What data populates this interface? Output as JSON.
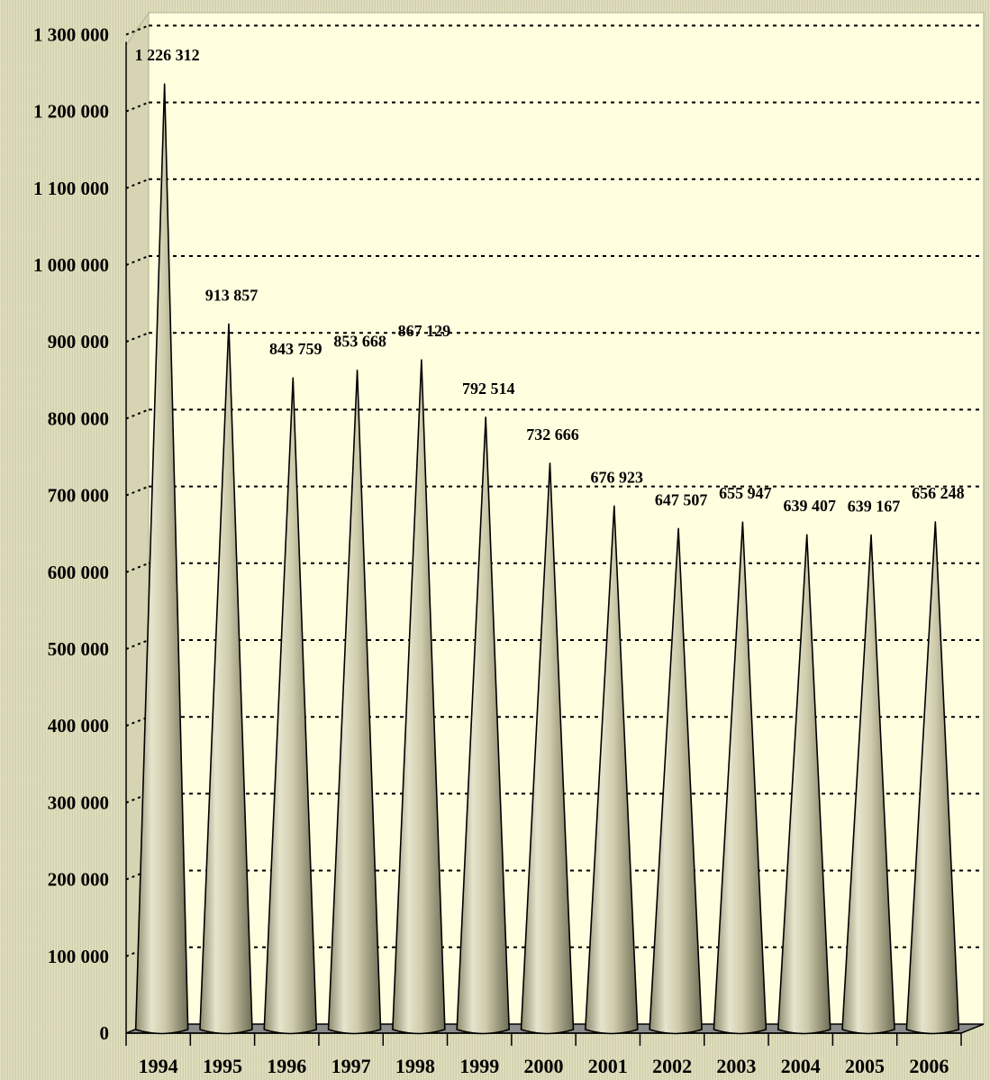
{
  "chart_data": {
    "type": "bar",
    "categories": [
      "1994",
      "1995",
      "1996",
      "1997",
      "1998",
      "1999",
      "2000",
      "2001",
      "2002",
      "2003",
      "2004",
      "2005",
      "2006"
    ],
    "values": [
      1226312,
      913857,
      843759,
      853668,
      867129,
      792514,
      732666,
      676923,
      647507,
      655947,
      639407,
      639167,
      656248
    ],
    "data_labels": [
      "1 226 312",
      "913 857",
      "843 759",
      "853 668",
      "867 129",
      "792 514",
      "732 666",
      "676 923",
      "647 507",
      "655 947",
      "639 407",
      "639 167",
      "656 248"
    ],
    "yticks": [
      0,
      100000,
      200000,
      300000,
      400000,
      500000,
      600000,
      700000,
      800000,
      900000,
      1000000,
      1100000,
      1200000,
      1300000
    ],
    "ytick_labels": [
      "0",
      "100 000",
      "200 000",
      "300 000",
      "400 000",
      "500 000",
      "600 000",
      "700 000",
      "800 000",
      "900 000",
      "1 000 000",
      "1 100 000",
      "1 200 000",
      "1 300 000"
    ],
    "ylim": [
      0,
      1300000
    ],
    "title": "",
    "xlabel": "",
    "ylabel": "",
    "grid": "horizontal dashed",
    "bar_shape": "cone",
    "colors": {
      "cone": "#c8c5a4",
      "wall": "#ffffe0",
      "floor": "#8c8c8c"
    }
  }
}
